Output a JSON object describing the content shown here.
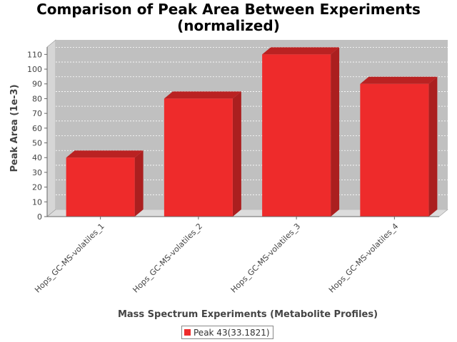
{
  "chart_data": {
    "type": "bar",
    "title_lines": [
      "Comparison of Peak Area Between Experiments",
      "(normalized)"
    ],
    "xlabel": "Mass Spectrum Experiments (Metabolite Profiles)",
    "ylabel": "Peak Area (1e-3)",
    "categories": [
      "Hops_GC-MS-volatiles_1",
      "Hops_GC-MS-volatiles_2",
      "Hops_GC-MS-volatiles_3",
      "Hops_GC-MS-volatiles_4"
    ],
    "series": [
      {
        "name": "Peak 43(33.1821)",
        "values": [
          40,
          80,
          110,
          90
        ],
        "color": "#ee2b2b"
      }
    ],
    "ylim": [
      0,
      115
    ],
    "yticks": [
      0,
      10,
      20,
      30,
      40,
      50,
      60,
      70,
      80,
      90,
      100,
      110
    ],
    "grid": true,
    "legend_position": "bottom-center",
    "plot_background": "#c0c0c0",
    "three_d": true
  }
}
